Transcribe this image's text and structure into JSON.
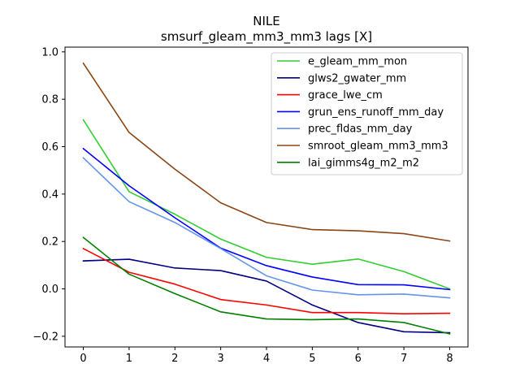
{
  "chart_data": {
    "type": "line",
    "title": "NILE",
    "subtitle": "smsurf_gleam_mm3_mm3 lags [X]",
    "xlabel": "",
    "ylabel": "",
    "x": [
      0,
      1,
      2,
      3,
      4,
      5,
      6,
      7,
      8
    ],
    "xlim": [
      -0.4,
      8.4
    ],
    "ylim": [
      -0.245,
      1.02
    ],
    "xticks": [
      0,
      1,
      2,
      3,
      4,
      5,
      6,
      7,
      8
    ],
    "yticks": [
      -0.2,
      0.0,
      0.2,
      0.4,
      0.6,
      0.8,
      1.0
    ],
    "ytick_labels": [
      "−0.2",
      "0.0",
      "0.2",
      "0.4",
      "0.6",
      "0.8",
      "1.0"
    ],
    "grid": false,
    "legend_position": "top-right",
    "series": [
      {
        "name": "e_gleam_mm_mon",
        "color": "#32cd32",
        "values": [
          0.713,
          0.41,
          0.315,
          0.21,
          0.133,
          0.104,
          0.126,
          0.073,
          0.0
        ]
      },
      {
        "name": "glws2_gwater_mm",
        "color": "#000080",
        "values": [
          0.118,
          0.125,
          0.088,
          0.077,
          0.033,
          -0.068,
          -0.142,
          -0.181,
          -0.185
        ]
      },
      {
        "name": "grace_lwe_cm",
        "color": "#ff0000",
        "values": [
          0.17,
          0.07,
          0.02,
          -0.045,
          -0.068,
          -0.1,
          -0.1,
          -0.105,
          -0.103
        ]
      },
      {
        "name": "grun_ens_runoff_mm_day",
        "color": "#0000ff",
        "values": [
          0.592,
          0.435,
          0.3,
          0.172,
          0.098,
          0.05,
          0.018,
          0.017,
          -0.003
        ]
      },
      {
        "name": "prec_fldas_mm_day",
        "color": "#6495ed",
        "values": [
          0.553,
          0.368,
          0.28,
          0.17,
          0.055,
          -0.005,
          -0.025,
          -0.022,
          -0.038
        ]
      },
      {
        "name": "smroot_gleam_mm3_mm3",
        "color": "#8b4513",
        "values": [
          0.952,
          0.66,
          0.505,
          0.363,
          0.28,
          0.25,
          0.245,
          0.233,
          0.202
        ]
      },
      {
        "name": "lai_gimms4g_m2_m2",
        "color": "#008000",
        "values": [
          0.217,
          0.062,
          -0.02,
          -0.097,
          -0.127,
          -0.13,
          -0.127,
          -0.142,
          -0.19
        ]
      }
    ]
  }
}
